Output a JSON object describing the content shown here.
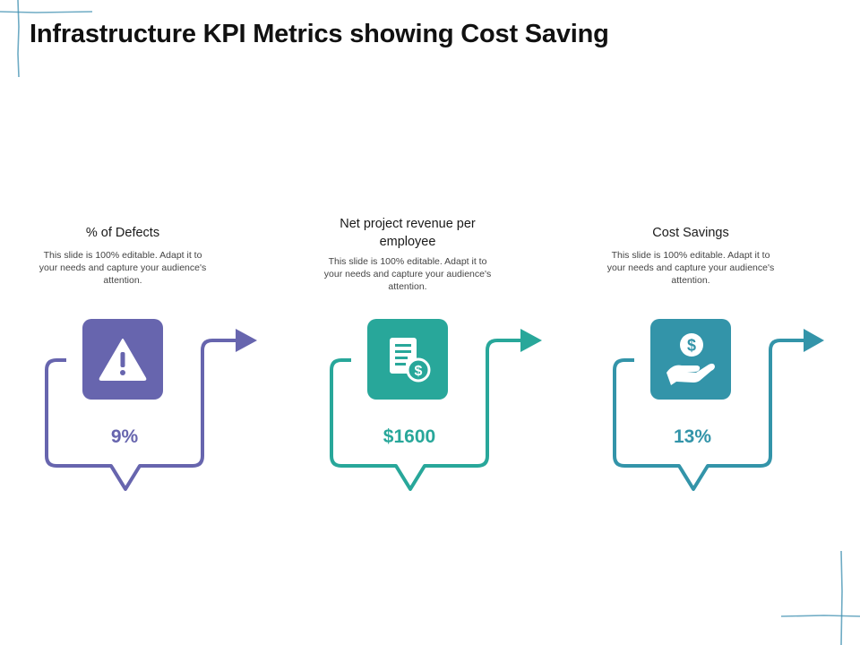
{
  "title": "Infrastructure KPI Metrics showing Cost Saving",
  "kpis": [
    {
      "heading": "% of Defects",
      "description": "This slide is 100% editable. Adapt it to your needs and capture your audience's attention.",
      "value": "9%",
      "icon": "warning-icon",
      "color": "#6765AE"
    },
    {
      "heading": "Net project revenue per employee",
      "description": "This slide is 100% editable. Adapt it to your needs and capture your audience's attention.",
      "value": "$1600",
      "icon": "document-dollar-icon",
      "color": "#28A79A"
    },
    {
      "heading": "Cost Savings",
      "description": "This slide is 100% editable. Adapt it to your needs and capture your audience's attention.",
      "value": "13%",
      "icon": "hand-dollar-icon",
      "color": "#3394A9"
    }
  ]
}
